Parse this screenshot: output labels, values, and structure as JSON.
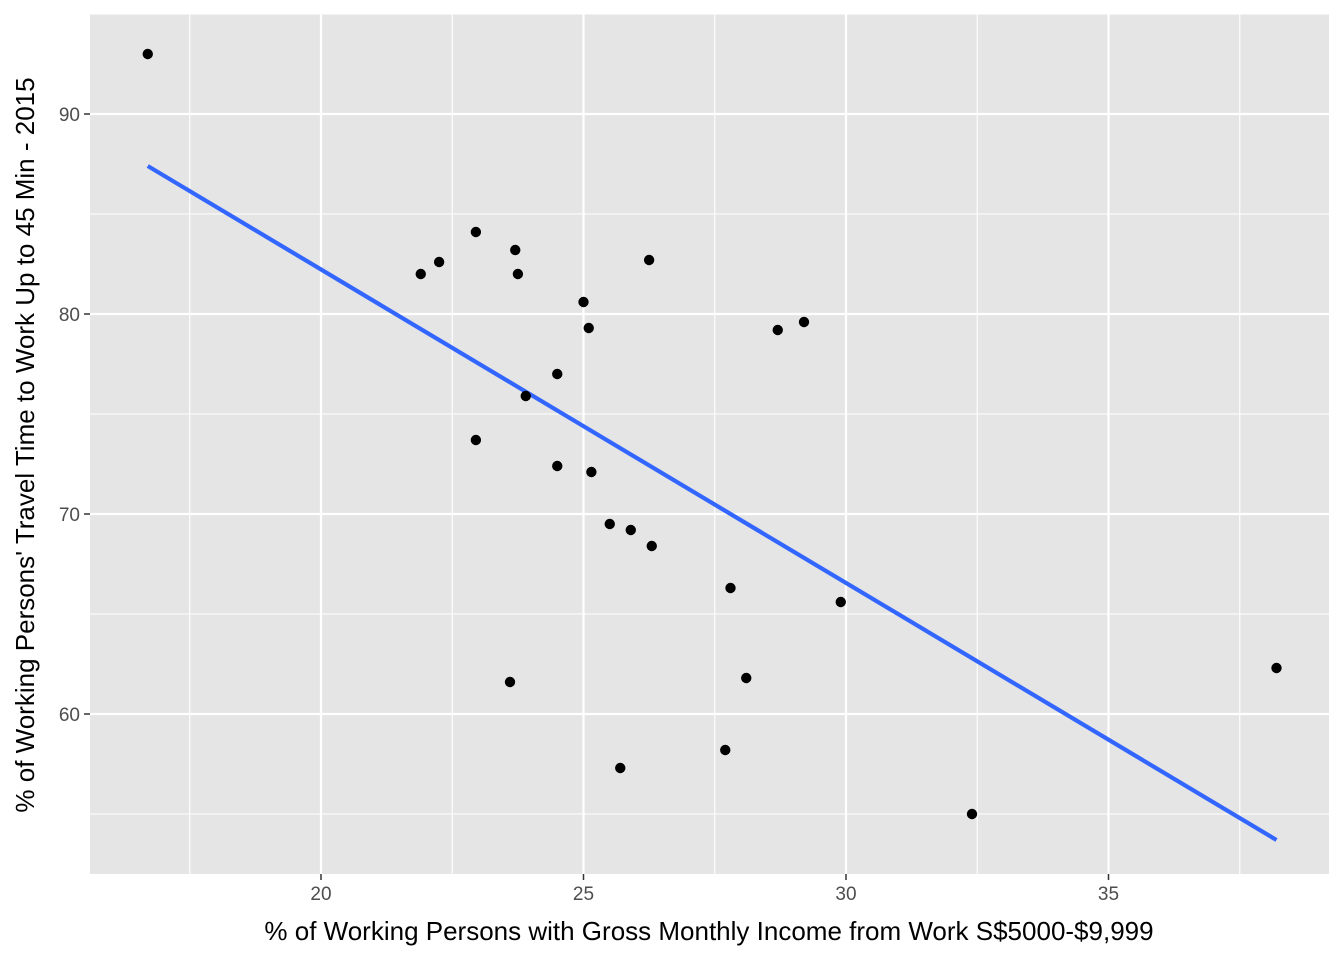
{
  "chart_data": {
    "type": "scatter",
    "title": "",
    "xlabel": "% of Working Persons with Gross Monthly Income from Work S$5000-$9,999",
    "ylabel": "% of Working Persons' Travel Time to Work Up to 45 Min - 2015",
    "xlim": [
      15.6,
      39.2
    ],
    "ylim": [
      52.0,
      95.0
    ],
    "x_ticks": [
      20,
      25,
      30,
      35
    ],
    "y_ticks": [
      60,
      70,
      80,
      90
    ],
    "x_tick_labels": [
      "20",
      "25",
      "30",
      "35"
    ],
    "y_tick_labels": [
      "60",
      "70",
      "80",
      "90"
    ],
    "grid": true,
    "legend": "none",
    "colors": {
      "panel": "#e5e5e5",
      "grid": "#ffffff",
      "points": "#000000",
      "trend": "#3366ff",
      "tick": "#333333"
    },
    "points": [
      {
        "x": 16.7,
        "y": 93.0
      },
      {
        "x": 21.9,
        "y": 82.0
      },
      {
        "x": 22.25,
        "y": 82.6
      },
      {
        "x": 22.95,
        "y": 84.1
      },
      {
        "x": 23.7,
        "y": 83.2
      },
      {
        "x": 23.75,
        "y": 82.0
      },
      {
        "x": 25.0,
        "y": 80.6
      },
      {
        "x": 25.1,
        "y": 79.3
      },
      {
        "x": 26.25,
        "y": 82.7
      },
      {
        "x": 28.7,
        "y": 79.2
      },
      {
        "x": 29.2,
        "y": 79.6
      },
      {
        "x": 24.5,
        "y": 77.0
      },
      {
        "x": 23.9,
        "y": 75.9
      },
      {
        "x": 22.95,
        "y": 73.7
      },
      {
        "x": 24.5,
        "y": 72.4
      },
      {
        "x": 25.15,
        "y": 72.1
      },
      {
        "x": 25.5,
        "y": 69.5
      },
      {
        "x": 25.9,
        "y": 69.2
      },
      {
        "x": 26.3,
        "y": 68.4
      },
      {
        "x": 27.8,
        "y": 66.3
      },
      {
        "x": 29.9,
        "y": 65.6
      },
      {
        "x": 23.6,
        "y": 61.6
      },
      {
        "x": 28.1,
        "y": 61.8
      },
      {
        "x": 38.2,
        "y": 62.3
      },
      {
        "x": 27.7,
        "y": 58.2
      },
      {
        "x": 25.7,
        "y": 57.3
      },
      {
        "x": 32.4,
        "y": 55.0
      }
    ],
    "trend_line": {
      "method": "linear",
      "x": [
        16.7,
        38.2
      ],
      "y": [
        87.4,
        53.7
      ]
    }
  }
}
